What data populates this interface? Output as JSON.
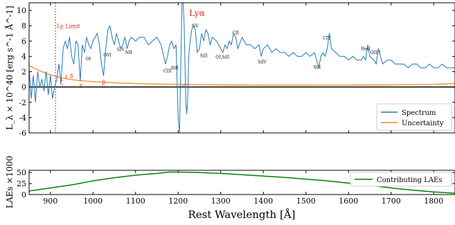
{
  "chart_data": [
    {
      "type": "line",
      "xlim": [
        850,
        1850
      ],
      "ylim": [
        -6,
        11
      ],
      "x_ticks": [
        900,
        1000,
        1100,
        1200,
        1300,
        1400,
        1500,
        1600,
        1700,
        1800
      ],
      "y_ticks": [
        -6,
        -4,
        -2,
        0,
        2,
        4,
        6,
        8,
        10
      ],
      "ylabel": "L_λ × 10^40 [erg s^-1 Å^-1]",
      "legend_position": "lower-right",
      "series": [
        {
          "name": "Spectrum",
          "color": "#1f77b4",
          "x": [
            850,
            855,
            860,
            865,
            870,
            875,
            880,
            885,
            890,
            895,
            900,
            905,
            910,
            915,
            920,
            925,
            930,
            935,
            940,
            945,
            950,
            955,
            960,
            965,
            970,
            975,
            980,
            985,
            990,
            995,
            1000,
            1005,
            1010,
            1015,
            1020,
            1025,
            1030,
            1035,
            1040,
            1045,
            1050,
            1055,
            1060,
            1065,
            1070,
            1075,
            1080,
            1085,
            1090,
            1100,
            1110,
            1120,
            1130,
            1140,
            1150,
            1160,
            1170,
            1175,
            1180,
            1185,
            1190,
            1195,
            1200,
            1203,
            1206,
            1209,
            1212,
            1214,
            1216,
            1218,
            1220,
            1222,
            1225,
            1228,
            1232,
            1236,
            1240,
            1245,
            1250,
            1255,
            1260,
            1265,
            1270,
            1275,
            1280,
            1290,
            1300,
            1305,
            1310,
            1315,
            1320,
            1325,
            1330,
            1335,
            1340,
            1350,
            1360,
            1370,
            1380,
            1390,
            1395,
            1400,
            1410,
            1420,
            1430,
            1440,
            1450,
            1460,
            1470,
            1480,
            1490,
            1500,
            1510,
            1520,
            1525,
            1530,
            1535,
            1540,
            1545,
            1550,
            1555,
            1560,
            1570,
            1580,
            1590,
            1600,
            1610,
            1620,
            1630,
            1635,
            1640,
            1645,
            1650,
            1660,
            1665,
            1670,
            1680,
            1690,
            1700,
            1710,
            1720,
            1730,
            1740,
            1750,
            1760,
            1770,
            1780,
            1790,
            1800,
            1810,
            1820,
            1830,
            1840,
            1850
          ],
          "y": [
            2.5,
            -1.5,
            1.5,
            -2.0,
            2.0,
            0.0,
            1.0,
            -0.5,
            2.0,
            -1.0,
            1.5,
            -1.5,
            0.0,
            1.0,
            3.0,
            0.5,
            5.0,
            6.0,
            5.0,
            6.5,
            4.0,
            3.0,
            6.0,
            5.5,
            0.8,
            5.5,
            4.5,
            6.5,
            5.5,
            5.0,
            6.0,
            6.5,
            7.0,
            5.5,
            3.0,
            1.5,
            5.0,
            7.5,
            8.0,
            6.5,
            5.5,
            7.0,
            6.0,
            5.0,
            5.5,
            6.5,
            5.0,
            6.0,
            6.5,
            6.0,
            6.5,
            6.5,
            5.5,
            6.0,
            6.5,
            5.5,
            3.0,
            4.0,
            5.5,
            6.0,
            5.0,
            5.5,
            -4.0,
            -6.0,
            2.0,
            11.0,
            11.0,
            8.0,
            3.0,
            -2.0,
            -3.5,
            -2.0,
            4.0,
            6.0,
            7.5,
            8.0,
            7.5,
            4.5,
            5.0,
            7.0,
            6.0,
            7.5,
            7.0,
            5.5,
            6.5,
            6.0,
            5.0,
            4.5,
            5.5,
            5.0,
            6.0,
            5.5,
            7.0,
            6.5,
            5.0,
            6.5,
            5.5,
            5.5,
            5.0,
            5.5,
            4.0,
            5.0,
            5.5,
            4.5,
            5.0,
            4.5,
            4.5,
            4.0,
            4.5,
            4.0,
            4.0,
            4.5,
            4.0,
            4.5,
            3.5,
            2.5,
            4.0,
            4.5,
            4.0,
            5.0,
            7.0,
            5.0,
            4.5,
            4.0,
            4.0,
            3.5,
            4.0,
            3.5,
            3.5,
            4.0,
            3.5,
            5.5,
            4.0,
            3.5,
            3.0,
            5.0,
            3.0,
            3.5,
            3.5,
            3.0,
            3.0,
            3.0,
            2.5,
            3.0,
            3.0,
            2.5,
            2.5,
            3.0,
            2.5,
            2.5,
            3.0,
            2.5,
            2.5,
            2.5
          ]
        },
        {
          "name": "Uncertainty",
          "color": "#ff7f0e",
          "x": [
            850,
            875,
            900,
            925,
            950,
            975,
            1000,
            1050,
            1100,
            1150,
            1200,
            1250,
            1300,
            1400,
            1500,
            1600,
            1700,
            1800,
            1850
          ],
          "y": [
            2.8,
            2.1,
            1.6,
            1.2,
            0.95,
            0.8,
            0.7,
            0.55,
            0.45,
            0.38,
            0.33,
            0.3,
            0.28,
            0.25,
            0.25,
            0.26,
            0.28,
            0.35,
            0.45
          ]
        }
      ],
      "annotations": {
        "lyman_limit": {
          "label": "Ly Limit",
          "x": 912
        },
        "lyman_alpha": {
          "label": "Lyα",
          "x": 1216,
          "y": 9.3
        },
        "lyman_series": [
          {
            "label": "ζ",
            "x": 926,
            "y": 0.6
          },
          {
            "label": "ε",
            "x": 938,
            "y": 1.4
          },
          {
            "label": "δ",
            "x": 950,
            "y": 1.4
          },
          {
            "label": "γ",
            "x": 972,
            "y": 0.3
          },
          {
            "label": "β",
            "x": 1025,
            "y": 0.6
          },
          {
            "label": "α",
            "x": 1216,
            "y": 0.3
          }
        ],
        "lines": [
          {
            "label": "OI",
            "x": 989,
            "y": 3.5
          },
          {
            "label": "OVI",
            "x": 1034,
            "y": 4.0
          },
          {
            "label": "SIV",
            "x": 1065,
            "y": 4.7
          },
          {
            "label": "NII",
            "x": 1084,
            "y": 4.3
          },
          {
            "label": "CIII",
            "x": 1175,
            "y": 1.9
          },
          {
            "label": "SiII",
            "x": 1192,
            "y": 2.3
          },
          {
            "label": "NV",
            "x": 1240,
            "y": 7.8
          },
          {
            "label": "SiII",
            "x": 1260,
            "y": 3.9
          },
          {
            "label": "OI,SiII",
            "x": 1304,
            "y": 3.7
          },
          {
            "label": "CII",
            "x": 1335,
            "y": 6.9
          },
          {
            "label": "SiIV",
            "x": 1397,
            "y": 3.1
          },
          {
            "label": "SiII",
            "x": 1526,
            "y": 2.4
          },
          {
            "label": "CIV",
            "x": 1549,
            "y": 6.2
          },
          {
            "label": "HeII",
            "x": 1640,
            "y": 4.8
          },
          {
            "label": "OIII]",
            "x": 1663,
            "y": 4.3
          }
        ]
      }
    },
    {
      "type": "line",
      "xlim": [
        850,
        1850
      ],
      "ylim": [
        0,
        55
      ],
      "x_ticks": [
        900,
        1000,
        1100,
        1200,
        1300,
        1400,
        1500,
        1600,
        1700,
        1800
      ],
      "y_ticks": [
        0,
        25,
        50
      ],
      "xlabel": "Rest Wavelength [Å]",
      "ylabel": "LAEs ×1000",
      "legend_position": "top-right",
      "series": [
        {
          "name": "Contributing LAEs",
          "color": "#008000",
          "x": [
            850,
            900,
            950,
            1000,
            1050,
            1100,
            1150,
            1180,
            1200,
            1250,
            1300,
            1350,
            1400,
            1450,
            1500,
            1550,
            1600,
            1650,
            1700,
            1750,
            1800,
            1850
          ],
          "y": [
            8,
            15,
            22,
            31,
            38,
            44,
            48,
            51,
            51,
            50,
            48,
            45,
            42,
            39,
            35,
            31,
            26,
            21,
            15,
            10,
            6,
            3
          ]
        }
      ]
    }
  ],
  "colors": {
    "spectrum": "#1f77b4",
    "uncertainty": "#ff7f0e",
    "laes": "#008000",
    "annotation": "#d62728",
    "zero_line": "#000000"
  }
}
